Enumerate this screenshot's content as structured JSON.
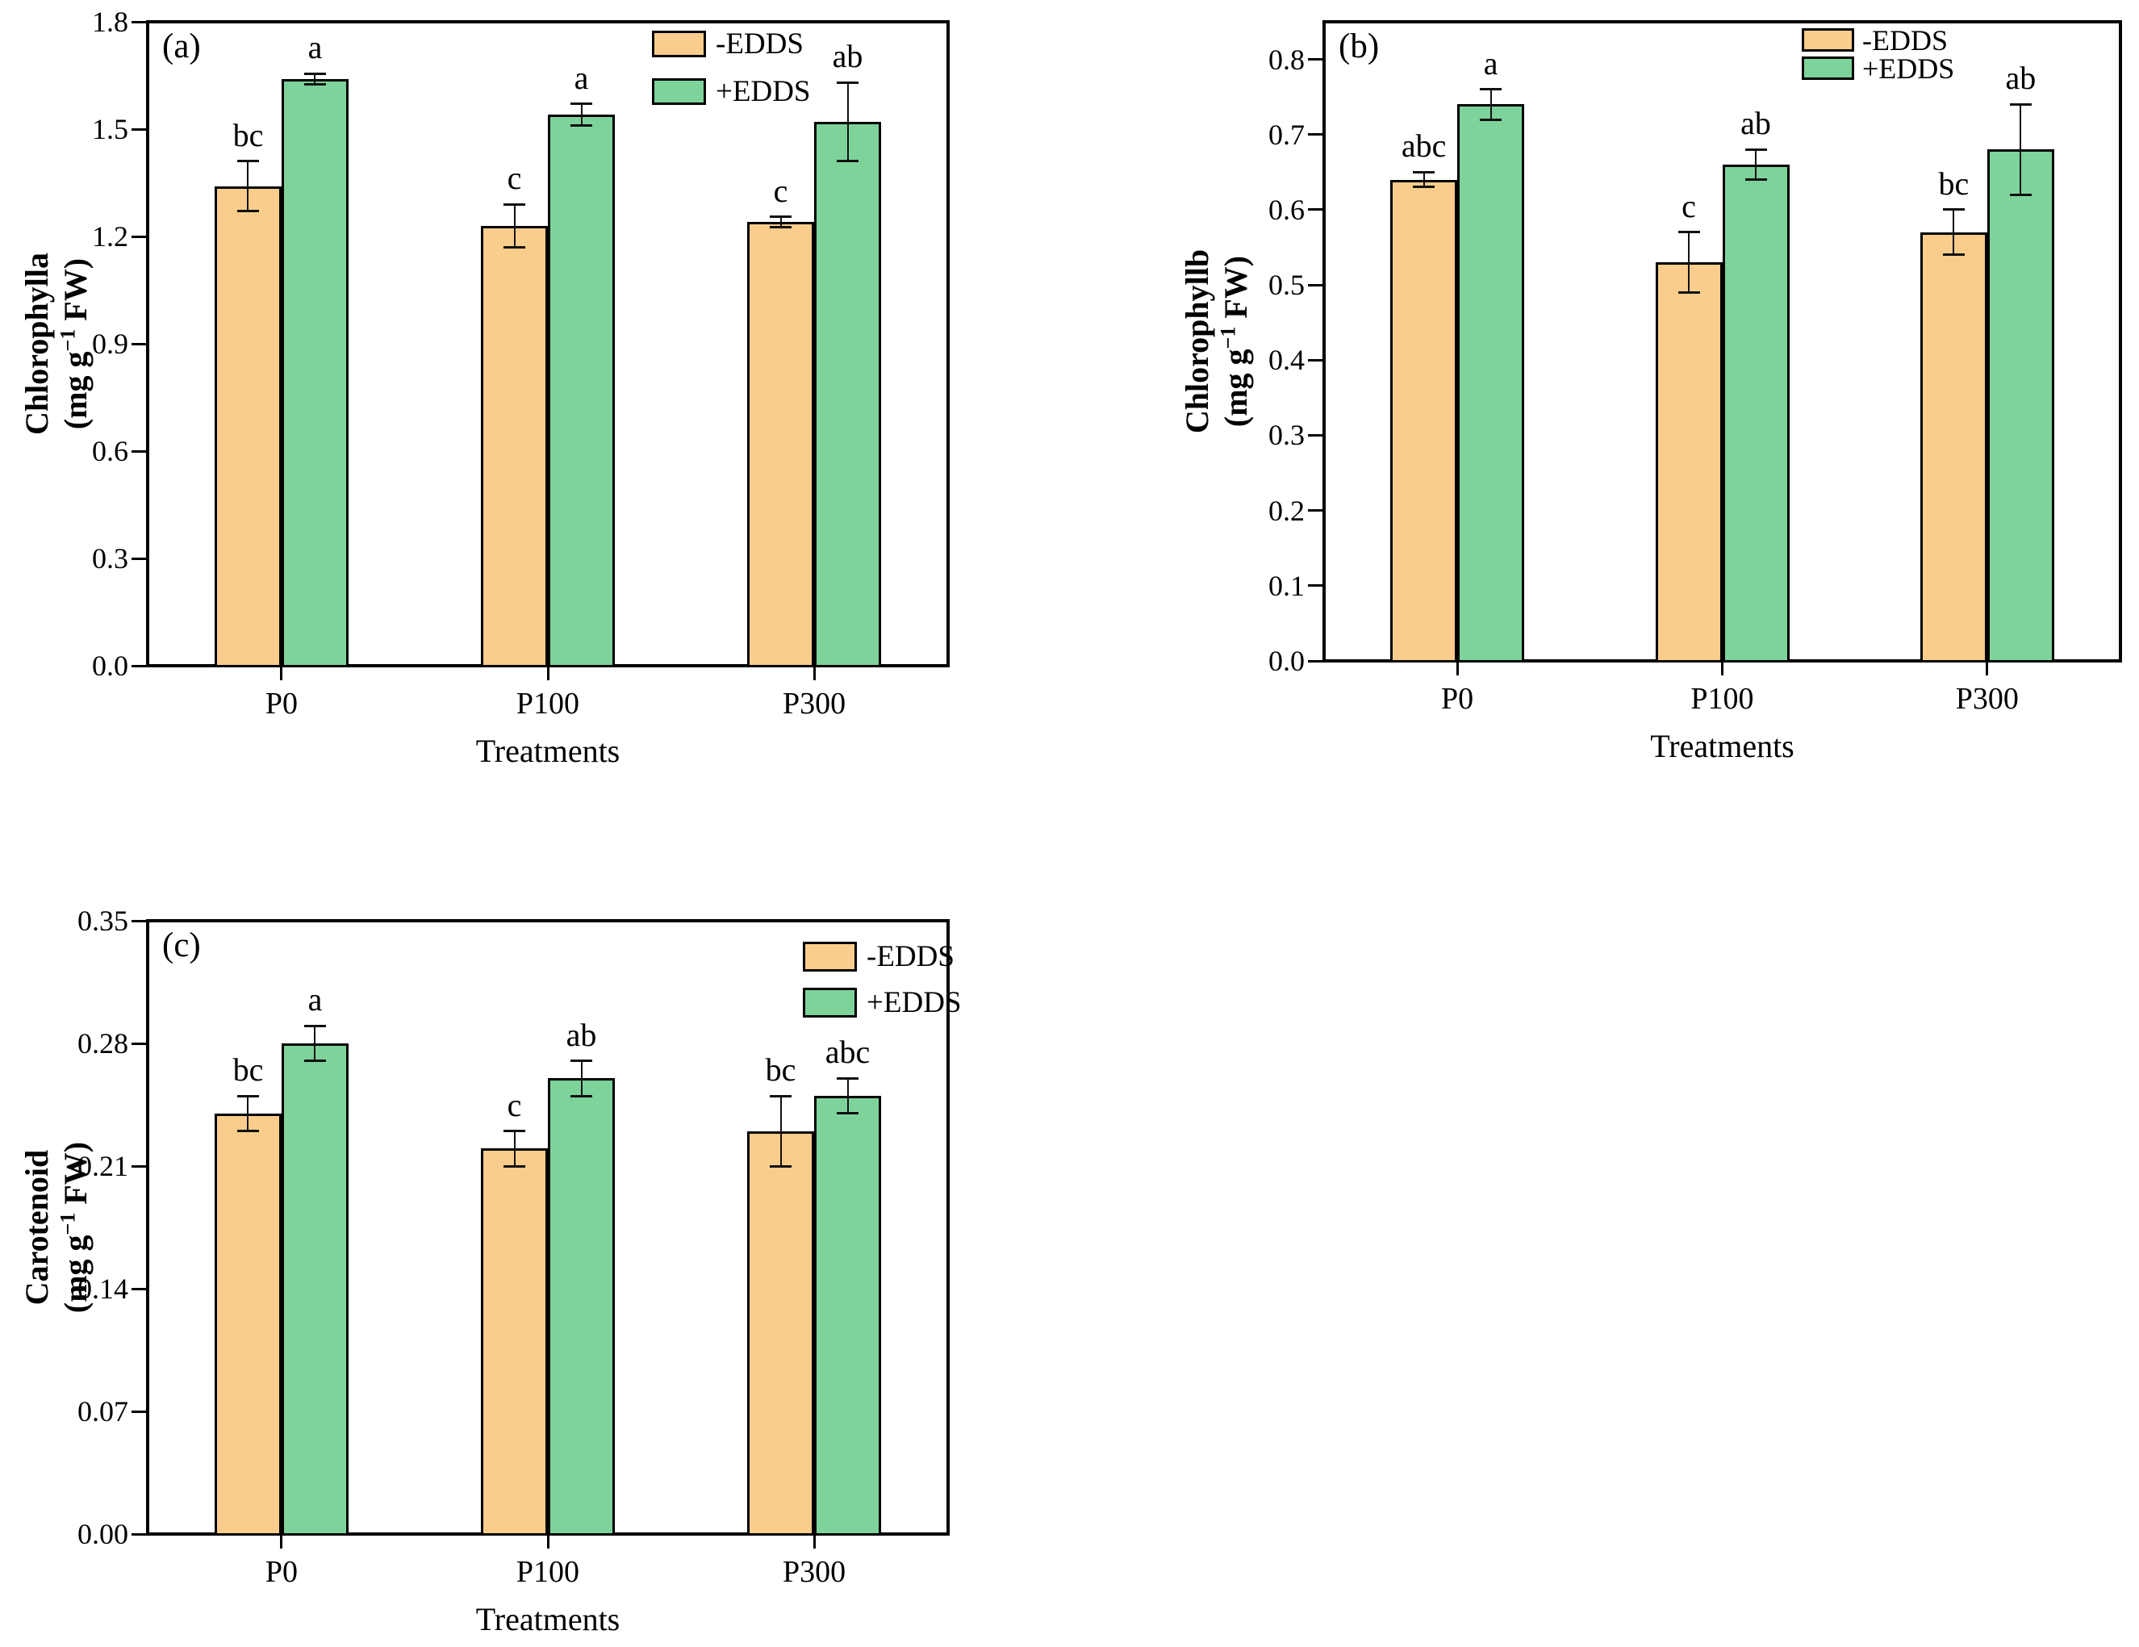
{
  "colors": {
    "minus_fill": "#FBCD8D",
    "plus_fill": "#7ED39B",
    "outline": "#000000",
    "error_bar": "#111111",
    "background": "#ffffff"
  },
  "chart_data": [
    {
      "type": "bar",
      "panel": "(a)",
      "ylabel": "Chlorophylla",
      "unit_prefix": "(mg g",
      "unit_sup": "−1",
      "unit_suffix": " FW)",
      "xlabel": "Treatments",
      "categories": [
        "P0",
        "P100",
        "P300"
      ],
      "yticks": [
        "0.0",
        "0.3",
        "0.6",
        "0.9",
        "1.2",
        "1.5",
        "1.8"
      ],
      "ylim": [
        0,
        1.8
      ],
      "grid": false,
      "legend_position": "top-right-inside",
      "series": [
        {
          "name": "-EDDS",
          "values": [
            1.34,
            1.23,
            1.24
          ],
          "errors": [
            0.07,
            0.06,
            0.015
          ],
          "letters": [
            "bc",
            "c",
            "c"
          ]
        },
        {
          "name": "+EDDS",
          "values": [
            1.64,
            1.54,
            1.52
          ],
          "errors": [
            0.015,
            0.03,
            0.11
          ],
          "letters": [
            "a",
            "a",
            "ab"
          ]
        }
      ]
    },
    {
      "type": "bar",
      "panel": "(b)",
      "ylabel": "Chlorophyllb",
      "unit_prefix": "(mg g",
      "unit_sup": "−1",
      "unit_suffix": " FW)",
      "xlabel": "Treatments",
      "categories": [
        "P0",
        "P100",
        "P300"
      ],
      "yticks": [
        "0.0",
        "0.1",
        "0.2",
        "0.3",
        "0.4",
        "0.5",
        "0.6",
        "0.7",
        "0.8"
      ],
      "ylim": [
        0,
        0.85
      ],
      "grid": false,
      "legend_position": "top-right-inside",
      "series": [
        {
          "name": "-EDDS",
          "values": [
            0.64,
            0.53,
            0.57
          ],
          "errors": [
            0.01,
            0.04,
            0.03
          ],
          "letters": [
            "abc",
            "c",
            "bc"
          ]
        },
        {
          "name": "+EDDS",
          "values": [
            0.74,
            0.66,
            0.68
          ],
          "errors": [
            0.02,
            0.02,
            0.06
          ],
          "letters": [
            "a",
            "ab",
            "ab"
          ]
        }
      ]
    },
    {
      "type": "bar",
      "panel": "(c)",
      "ylabel": "Carotenoid",
      "unit_prefix": "(mg g",
      "unit_sup": "−1",
      "unit_suffix": " FW)",
      "xlabel": "Treatments",
      "categories": [
        "P0",
        "P100",
        "P300"
      ],
      "yticks": [
        "0.00",
        "0.07",
        "0.14",
        "0.21",
        "0.28",
        "0.35"
      ],
      "ylim": [
        0,
        0.35
      ],
      "grid": false,
      "legend_position": "top-right-inside",
      "series": [
        {
          "name": "-EDDS",
          "values": [
            0.24,
            0.22,
            0.23
          ],
          "errors": [
            0.01,
            0.01,
            0.02
          ],
          "letters": [
            "bc",
            "c",
            "bc"
          ]
        },
        {
          "name": "+EDDS",
          "values": [
            0.28,
            0.26,
            0.25
          ],
          "errors": [
            0.01,
            0.01,
            0.01
          ],
          "letters": [
            "a",
            "ab",
            "abc"
          ]
        }
      ]
    }
  ]
}
